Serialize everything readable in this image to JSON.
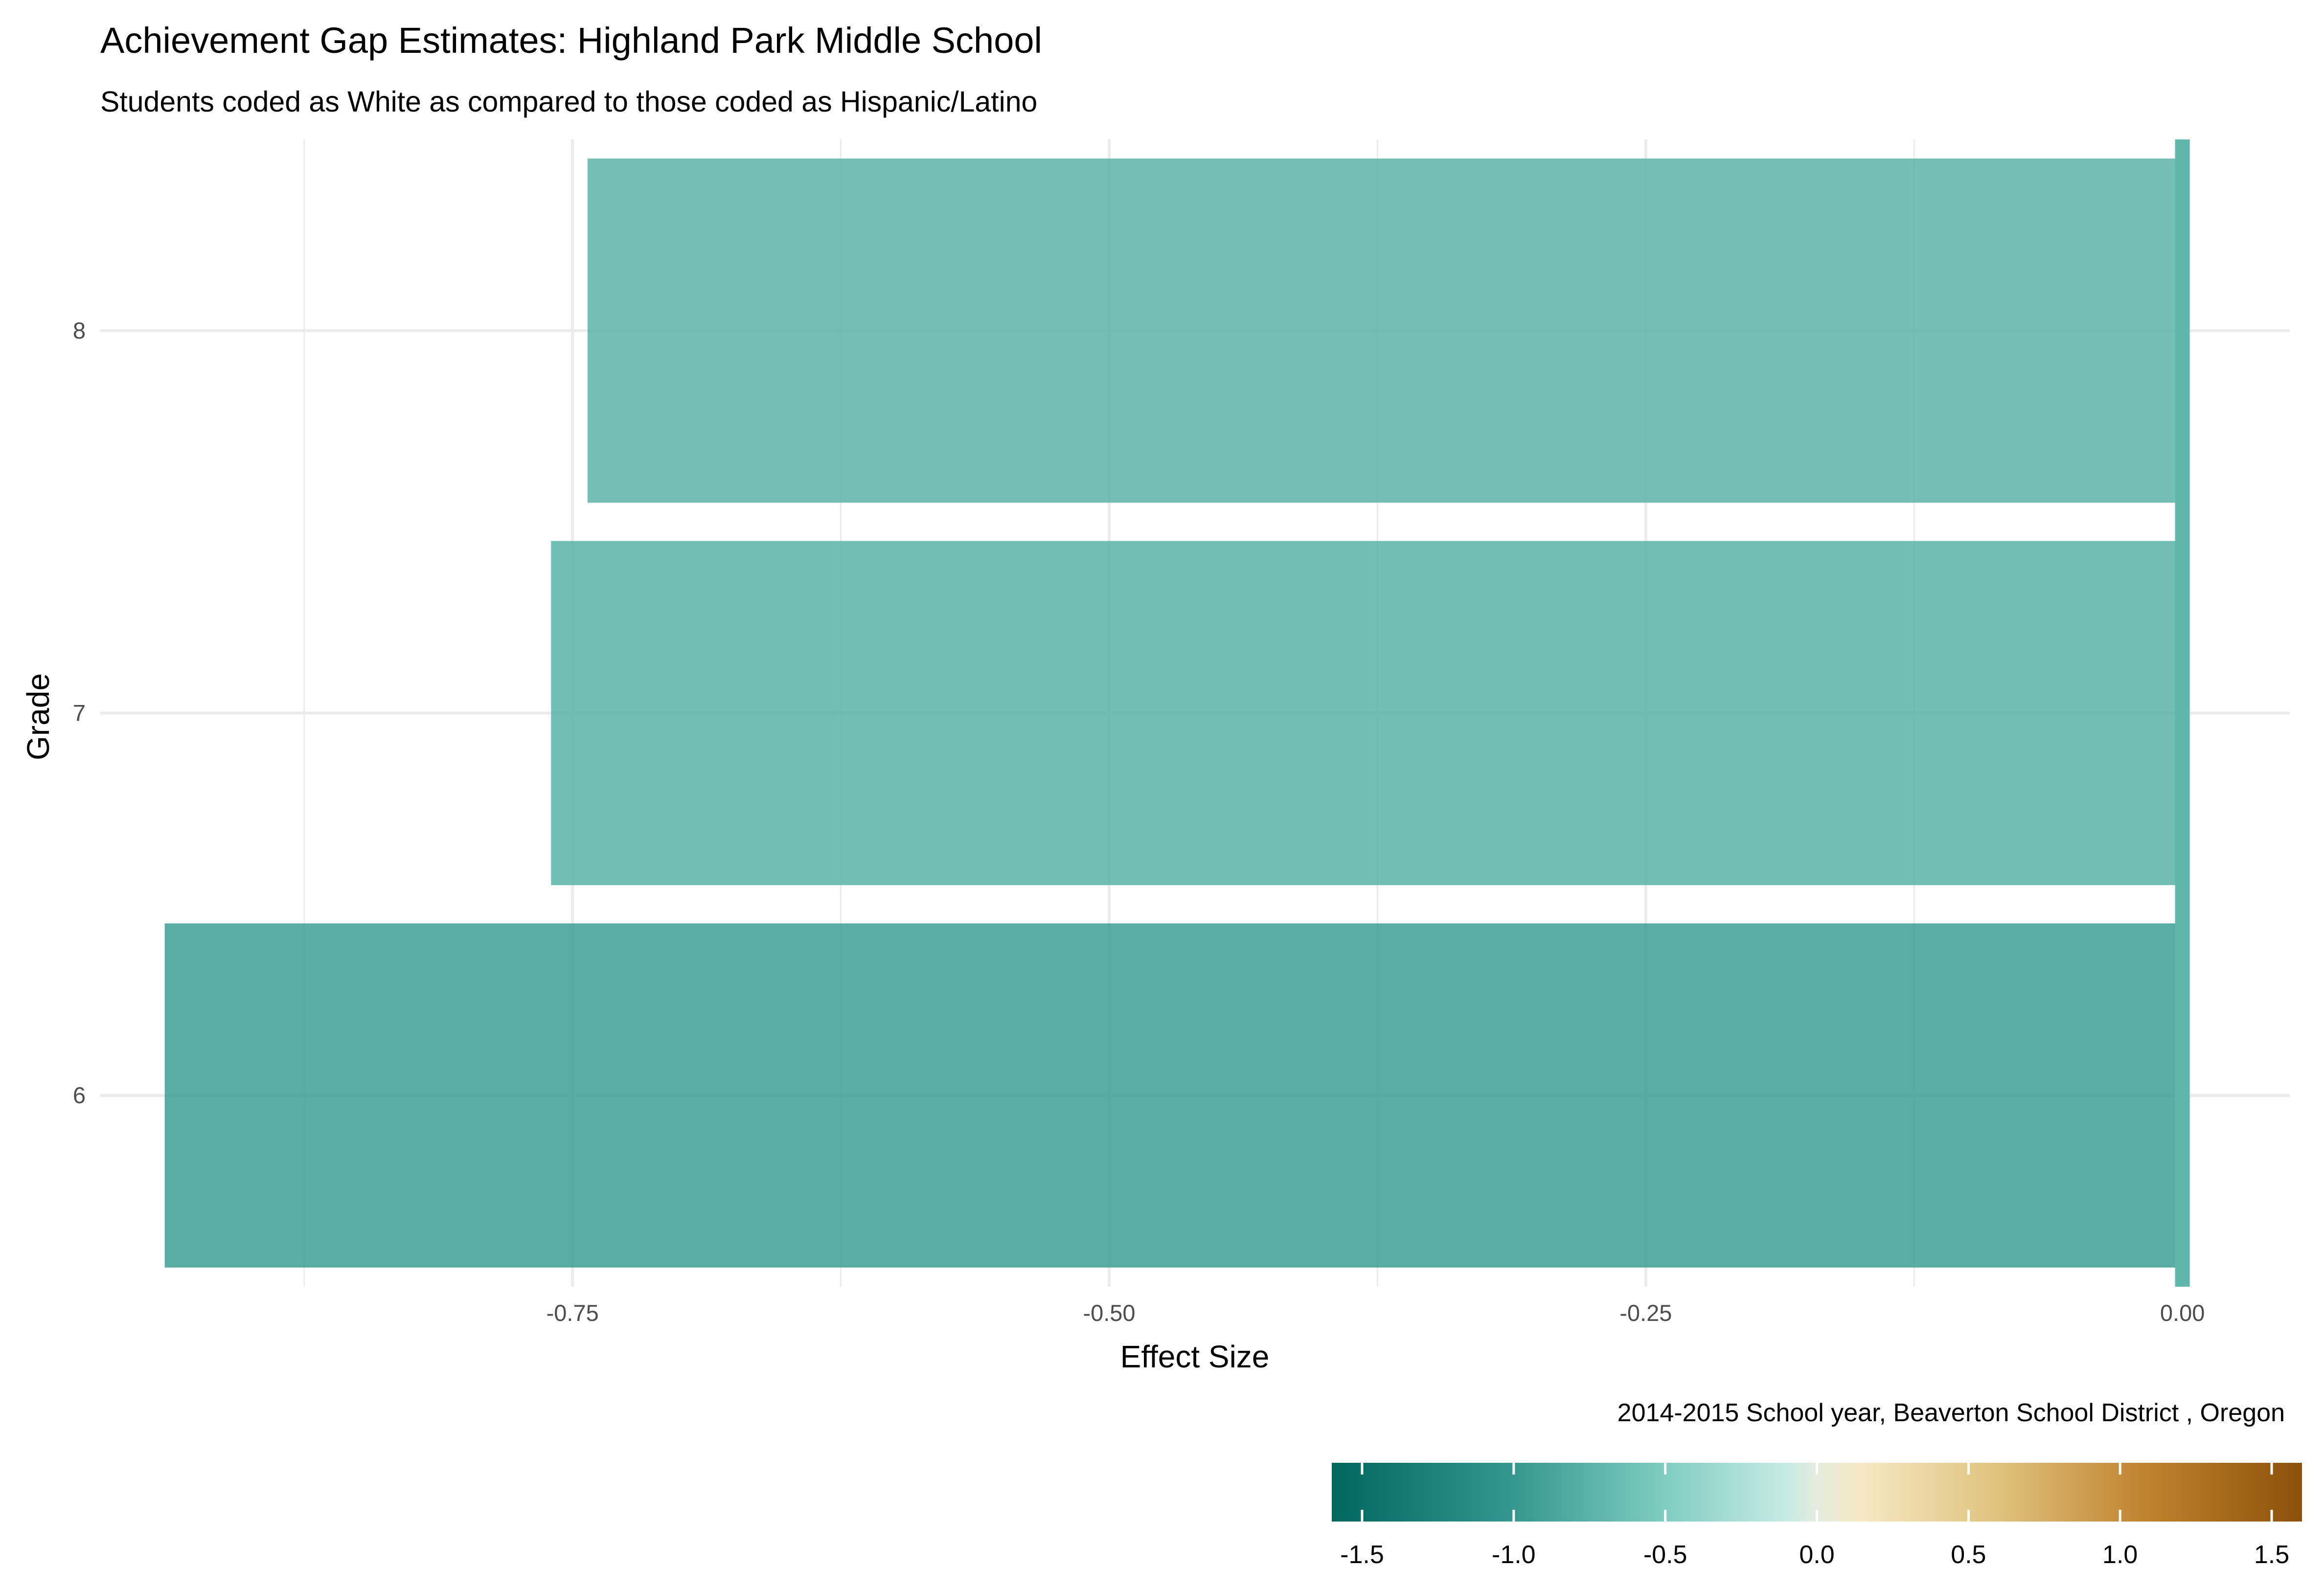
{
  "chart_data": {
    "type": "bar",
    "orientation": "horizontal",
    "title": "Achievement Gap Estimates: Highland Park Middle School",
    "subtitle": "Students coded as White as compared to those coded as Hispanic/Latino",
    "xlabel": "Effect Size",
    "ylabel": "Grade",
    "caption": "2014-2015 School year,  Beaverton School District , Oregon",
    "categories": [
      "6",
      "7",
      "8"
    ],
    "values": [
      -0.94,
      -0.76,
      -0.743
    ],
    "xlim": [
      -0.97,
      0.05
    ],
    "x_ticks": [
      {
        "value": -0.75,
        "label": "-0.75"
      },
      {
        "value": -0.5,
        "label": "-0.50"
      },
      {
        "value": -0.25,
        "label": "-0.25"
      },
      {
        "value": 0,
        "label": "0.00"
      }
    ],
    "reference_line": {
      "value": 0,
      "color": "#5fb7aa"
    },
    "bar_opacity": 0.85,
    "grid": true,
    "legend": {
      "type": "colorbar",
      "position": "bottom-right",
      "range": [
        -1.6,
        1.6
      ],
      "ticks": [
        {
          "value": -1.5,
          "label": "-1.5"
        },
        {
          "value": -1.0,
          "label": "-1.0"
        },
        {
          "value": -0.5,
          "label": "-0.5"
        },
        {
          "value": 0.0,
          "label": "0.0"
        },
        {
          "value": 0.5,
          "label": "0.5"
        },
        {
          "value": 1.0,
          "label": "1.0"
        },
        {
          "value": 1.5,
          "label": "1.5"
        }
      ],
      "palette": [
        {
          "value": -1.6,
          "color": "#01665e"
        },
        {
          "value": -1.0,
          "color": "#35978f"
        },
        {
          "value": -0.5,
          "color": "#80cdc1"
        },
        {
          "value": -0.1,
          "color": "#c7eae5"
        },
        {
          "value": 0.0,
          "color": "#e4ecde"
        },
        {
          "value": 0.15,
          "color": "#f6e8c3"
        },
        {
          "value": 0.6,
          "color": "#dfc27d"
        },
        {
          "value": 1.1,
          "color": "#bf812d"
        },
        {
          "value": 1.6,
          "color": "#8c510a"
        }
      ]
    }
  }
}
